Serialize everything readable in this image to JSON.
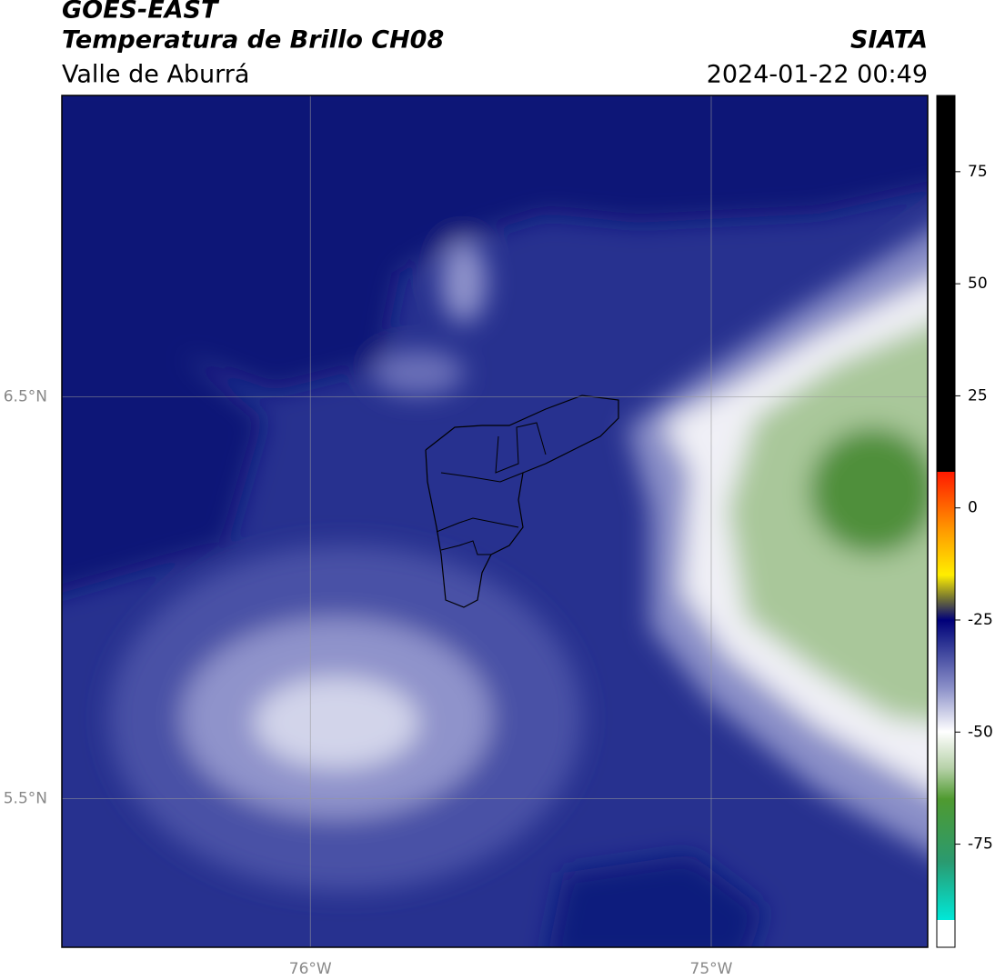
{
  "header": {
    "title": "GOES-EAST",
    "subtitle": "Temperatura de Brillo CH08",
    "region": "Valle de Aburrá",
    "source": "SIATA",
    "datetime": "2024-01-22 00:49"
  },
  "map": {
    "xlim": [
      -76.62,
      -74.46
    ],
    "ylim": [
      5.13,
      7.25
    ],
    "xticks": [
      {
        "value": -76,
        "label": "76°W"
      },
      {
        "value": -75,
        "label": "75°W"
      }
    ],
    "yticks": [
      {
        "value": 6.5,
        "label": "6.5°N"
      },
      {
        "value": 5.5,
        "label": "5.5°N"
      }
    ],
    "grid": true
  },
  "colorbar": {
    "lim": [
      -98,
      92
    ],
    "ticks": [
      75,
      50,
      25,
      0,
      -25,
      -50,
      -75
    ]
  }
}
